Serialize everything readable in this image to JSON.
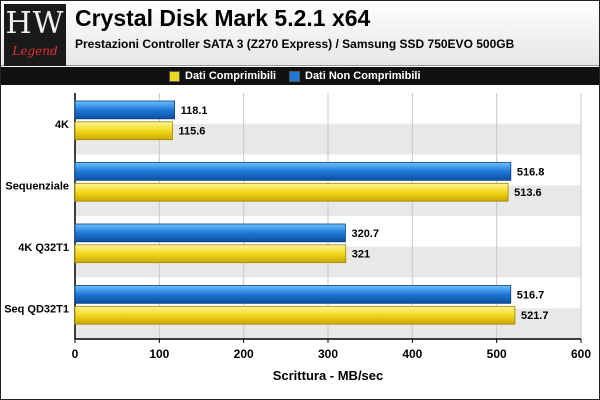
{
  "logo": {
    "top_text": "HW",
    "bottom_text": "Legend"
  },
  "chart_data": {
    "type": "bar",
    "orientation": "horizontal",
    "title": "Crystal Disk Mark 5.2.1 x64",
    "subtitle": "Prestazioni Controller SATA 3 (Z270 Express) / Samsung SSD 750EVO 500GB",
    "xlabel": "Scrittura - MB/sec",
    "ylabel": "",
    "categories": [
      "4K",
      "Sequenziale",
      "4K Q32T1",
      "Seq QD32T1"
    ],
    "series": [
      {
        "name": "Dati Non Comprimibili",
        "values": [
          118.1,
          516.8,
          320.7,
          516.7
        ],
        "color": "#1f78d6"
      },
      {
        "name": "Dati Comprimibili",
        "values": [
          115.6,
          513.6,
          321,
          521.7
        ],
        "color": "#f2d81c"
      }
    ],
    "value_labels": [
      [
        "118.1",
        "516.8",
        "320.7",
        "516.7"
      ],
      [
        "115.6",
        "513.6",
        "321",
        "521.7"
      ]
    ],
    "xlim": [
      0,
      600
    ],
    "xticks": [
      0,
      100,
      200,
      300,
      400,
      500,
      600
    ],
    "grid": true,
    "legend_position": "top",
    "legend_order": [
      "Dati Comprimibili",
      "Dati Non Comprimibili"
    ]
  }
}
